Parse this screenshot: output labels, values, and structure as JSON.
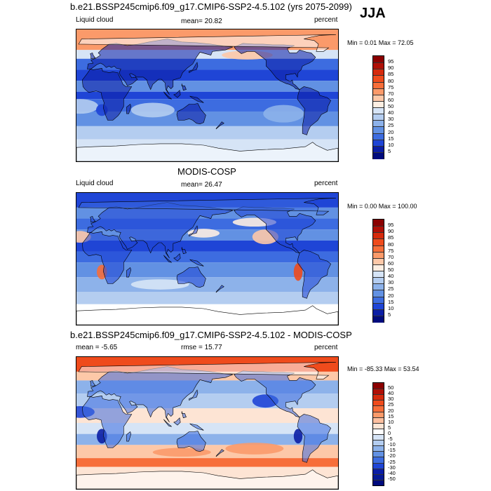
{
  "season": "JJA",
  "panels": [
    {
      "title": "b.e21.BSSP245cmip6.f09_g17.CMIP6-SSP2-4.5.102 (yrs 2075-2099)",
      "left_label": "Liquid cloud",
      "center_label": "mean=  20.82",
      "right_label": "percent",
      "minmax": "Min =   0.01 Max =  72.05",
      "colorbar_levels": [
        "95",
        "90",
        "85",
        "80",
        "75",
        "70",
        "60",
        "50",
        "40",
        "30",
        "25",
        "20",
        "15",
        "10",
        "5"
      ],
      "colorbar_colors": [
        "#8b0000",
        "#b00f06",
        "#d62a0c",
        "#ef4b1c",
        "#f76e3a",
        "#fb9a6a",
        "#fdc8a8",
        "#fdeee2",
        "#d6e4f6",
        "#b4cdf0",
        "#8db2ea",
        "#6291e3",
        "#3d6ce0",
        "#1f45d6",
        "#0b1ea5",
        "#000b7d"
      ],
      "field": "liquid_model"
    },
    {
      "title": "MODIS-COSP",
      "left_label": "Liquid cloud",
      "center_label": "mean=  26.47",
      "right_label": "percent",
      "minmax": "Min =   0.00 Max = 100.00",
      "colorbar_levels": [
        "95",
        "90",
        "85",
        "80",
        "75",
        "70",
        "60",
        "50",
        "40",
        "30",
        "25",
        "20",
        "15",
        "10",
        "5"
      ],
      "colorbar_colors": [
        "#8b0000",
        "#b00f06",
        "#d62a0c",
        "#ef4b1c",
        "#f76e3a",
        "#fb9a6a",
        "#fdc8a8",
        "#fdeee2",
        "#d6e4f6",
        "#b4cdf0",
        "#8db2ea",
        "#6291e3",
        "#3d6ce0",
        "#1f45d6",
        "#0b1ea5",
        "#000b7d"
      ],
      "field": "liquid_obs"
    },
    {
      "title": "b.e21.BSSP245cmip6.f09_g17.CMIP6-SSP2-4.5.102 - MODIS-COSP",
      "left_label": "mean =  -5.65",
      "center_label": "rmse =  15.77",
      "right_label": "percent",
      "minmax": "Min = -85.33 Max =  53.54",
      "colorbar_levels": [
        "50",
        "40",
        "30",
        "25",
        "20",
        "15",
        "10",
        "5",
        "0",
        "-5",
        "-10",
        "-15",
        "-20",
        "-25",
        "-30",
        "-40",
        "-50"
      ],
      "colorbar_colors": [
        "#8b0000",
        "#b00f06",
        "#d62a0c",
        "#ef4b1c",
        "#f76e3a",
        "#fb9a6a",
        "#fdbf9f",
        "#fde4d4",
        "#ffffff",
        "#d6e4f6",
        "#b4cdf0",
        "#8db2ea",
        "#6291e3",
        "#3d6ce0",
        "#1f45d6",
        "#0b1ea5",
        "#061a95",
        "#000b7d"
      ],
      "field": "diff"
    }
  ]
}
